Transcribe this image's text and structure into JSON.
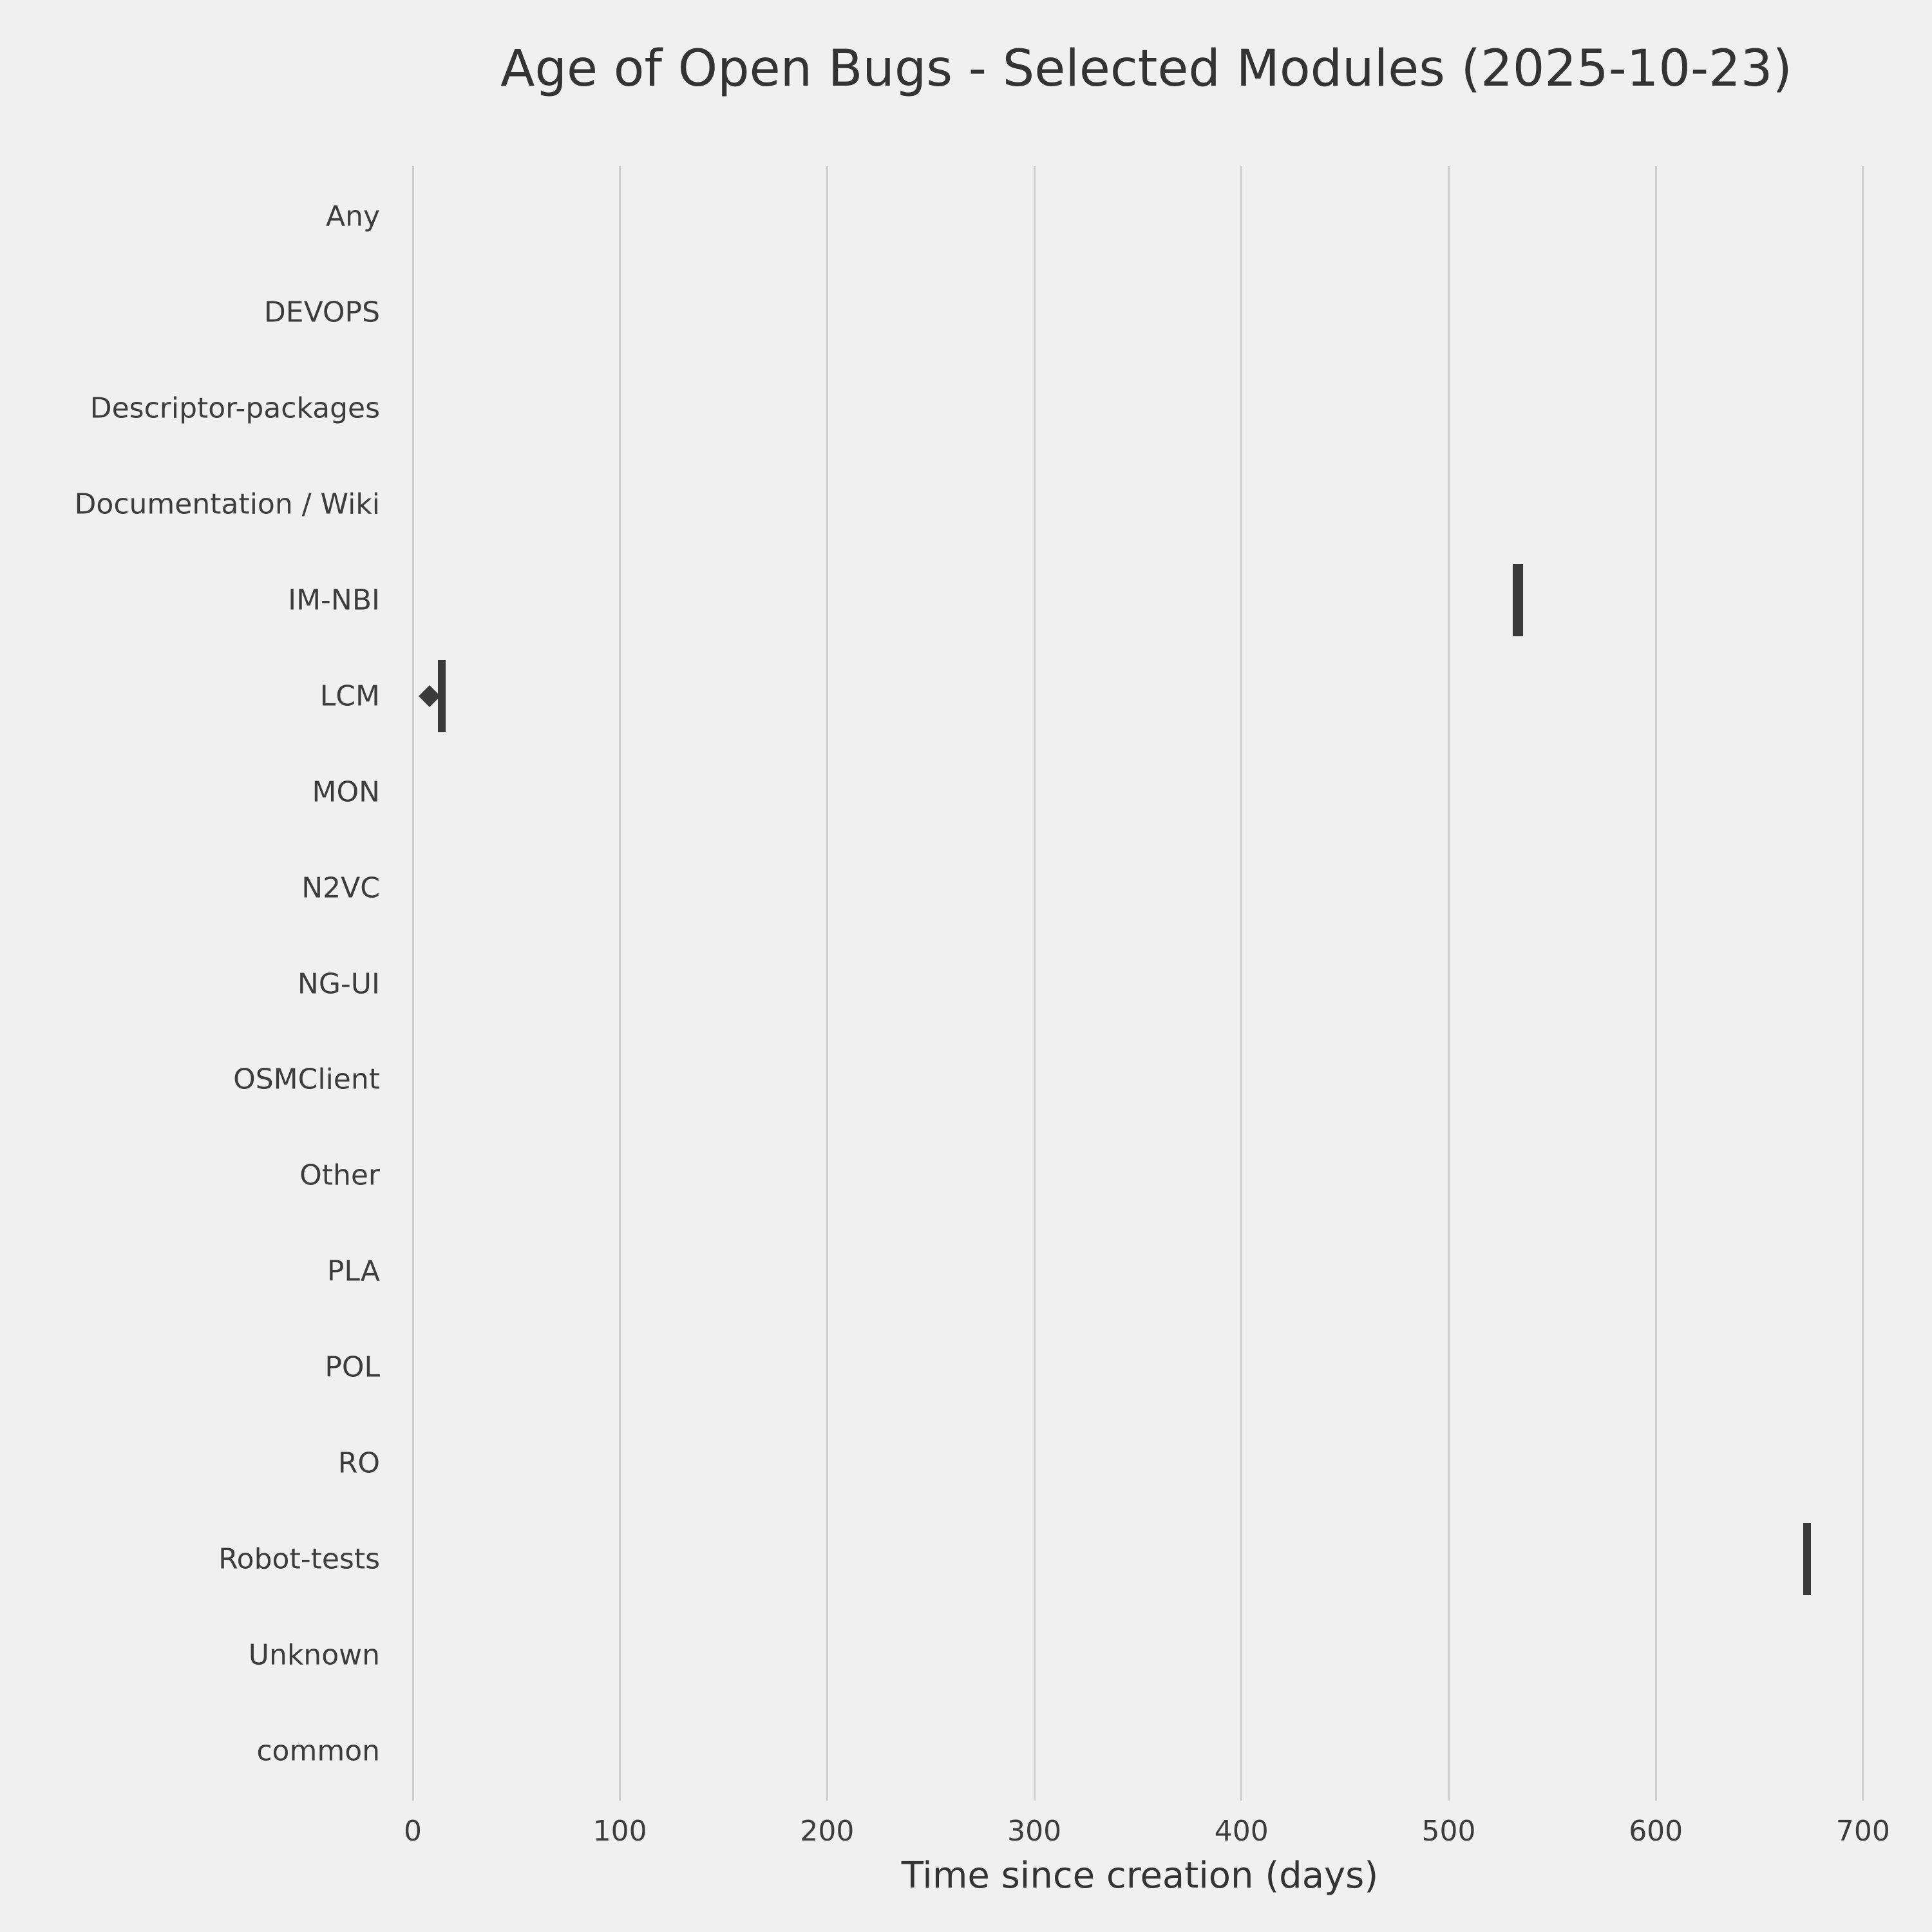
{
  "figure": {
    "title": "Age of Open Bugs - Selected Modules (2025-10-23)",
    "xlabel": "Time since creation (days)"
  },
  "chart_data": {
    "type": "box",
    "orientation": "horizontal",
    "title": "Age of Open Bugs - Selected Modules (2025-10-23)",
    "xlabel": "Time since creation (days)",
    "ylabel": "",
    "grid": true,
    "legend": false,
    "xticks": [
      0,
      100,
      200,
      300,
      400,
      500,
      600,
      700
    ],
    "xlim": [
      -45,
      715
    ],
    "categories": [
      "Any",
      "DEVOPS",
      "Descriptor-packages",
      "Documentation / Wiki",
      "IM-NBI",
      "LCM",
      "MON",
      "N2VC",
      "NG-UI",
      "OSMClient",
      "Other",
      "PLA",
      "POL",
      "RO",
      "Robot-tests",
      "Unknown",
      "common"
    ],
    "boxes": [
      {
        "category": "IM-NBI",
        "whisker_low": 531,
        "q1": 531,
        "median": 534,
        "q3": 536,
        "whisker_high": 536,
        "outliers": []
      },
      {
        "category": "LCM",
        "whisker_low": 12,
        "q1": 12,
        "median": 14,
        "q3": 16,
        "whisker_high": 16,
        "outliers": [
          8
        ]
      },
      {
        "category": "Robot-tests",
        "whisker_low": 671,
        "q1": 671,
        "median": 673,
        "q3": 675,
        "whisker_high": 675,
        "outliers": []
      }
    ],
    "colors": {
      "background": "#f0f0f0",
      "gridline": "#cfcfcf",
      "box": "#3a3a3a",
      "text": "#333333"
    },
    "notes": "Categories without a visible box have no open bugs plotted. Boxes have near-zero IQR so they render as narrow vertical ticks."
  }
}
